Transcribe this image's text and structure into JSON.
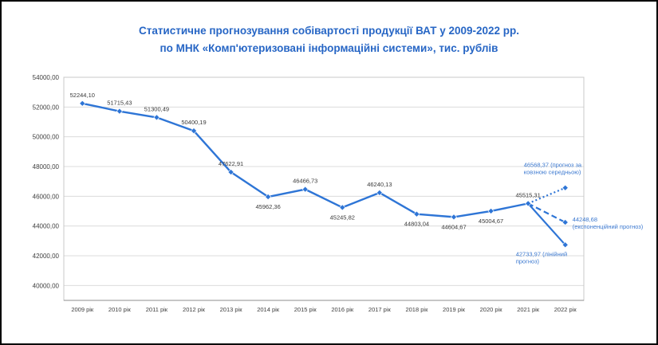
{
  "window": {
    "background": "#ffffff",
    "border_color": "#000000"
  },
  "chart_data": {
    "type": "line",
    "title_line1": "Статистичне прогнозування собівартості продукції ВАТ у 2009-2022 рр.",
    "title_line2": "по МНК «Комп'ютеризовані інформаційні системи», тис. рублів",
    "title_color": "#2766C5",
    "legend_position": "none",
    "grid": "horizontal",
    "colors": {
      "series": "#2E75D6",
      "gridline": "#DCDCDC",
      "plot_border": "#C8C8C8",
      "axis_line": "#8C8C8C",
      "axis_text": "#404040",
      "data_label": "#3A3A3A",
      "annotation": "#3C79D0"
    },
    "categories": [
      "2009 рік",
      "2010 рік",
      "2011 рік",
      "2012 рік",
      "2013 рік",
      "2014 рік",
      "2015 рік",
      "2016 рік",
      "2017 рік",
      "2018 рік",
      "2019 рік",
      "2020 рік",
      "2021 рік",
      "2022 рік"
    ],
    "y_axis": {
      "min": 39000,
      "max": 54000,
      "tick_values": [
        54000,
        52000,
        50000,
        48000,
        46000,
        44000,
        42000,
        40000
      ],
      "tick_labels": [
        "54000,00",
        "52000,00",
        "50000,00",
        "48000,00",
        "46000,00",
        "44000,00",
        "42000,00",
        "40000,00"
      ]
    },
    "series": [
      {
        "name": "historical-values",
        "color": "#2E75D6",
        "style": "solid",
        "marker": "diamond",
        "values": [
          52244.1,
          51715.43,
          51300.49,
          50400.19,
          47622.91,
          45962.36,
          46466.73,
          45245.82,
          46240.13,
          44803.04,
          44604.67,
          45004.67,
          45515.31
        ],
        "labels": [
          "52244,10",
          "51715,43",
          "51300,49",
          "50400,19",
          "47622,91",
          "45962,36",
          "46466,73",
          "45245,82",
          "46240,13",
          "44803,04",
          "44604,67",
          "45004,67",
          "45515,31"
        ],
        "label_positions": [
          "above",
          "above",
          "above",
          "above",
          "above",
          "below",
          "above",
          "below",
          "above",
          "below",
          "below",
          "below",
          "above"
        ]
      }
    ],
    "forecasts": [
      {
        "name": "moving-average-forecast",
        "line_style": "dotted",
        "value": 46568.37,
        "annotation_lines": [
          "46568,37 (прогноз за",
          "ковзною середньою)"
        ],
        "annotation_anchor": "start",
        "annotation_dx": -52,
        "annotation_dy": -26
      },
      {
        "name": "exponential-forecast",
        "line_style": "dashed",
        "value": 44248.68,
        "annotation_lines": [
          "44248,68",
          "(експоненційний прогноз)"
        ],
        "annotation_anchor": "start",
        "annotation_dx": 9,
        "annotation_dy": -1
      },
      {
        "name": "linear-forecast",
        "line_style": "solid",
        "value": 42733.97,
        "annotation_lines": [
          "42733,97 (лінійний",
          "прогноз)"
        ],
        "annotation_anchor": "start",
        "annotation_dx": -62,
        "annotation_dy": 14
      }
    ]
  }
}
